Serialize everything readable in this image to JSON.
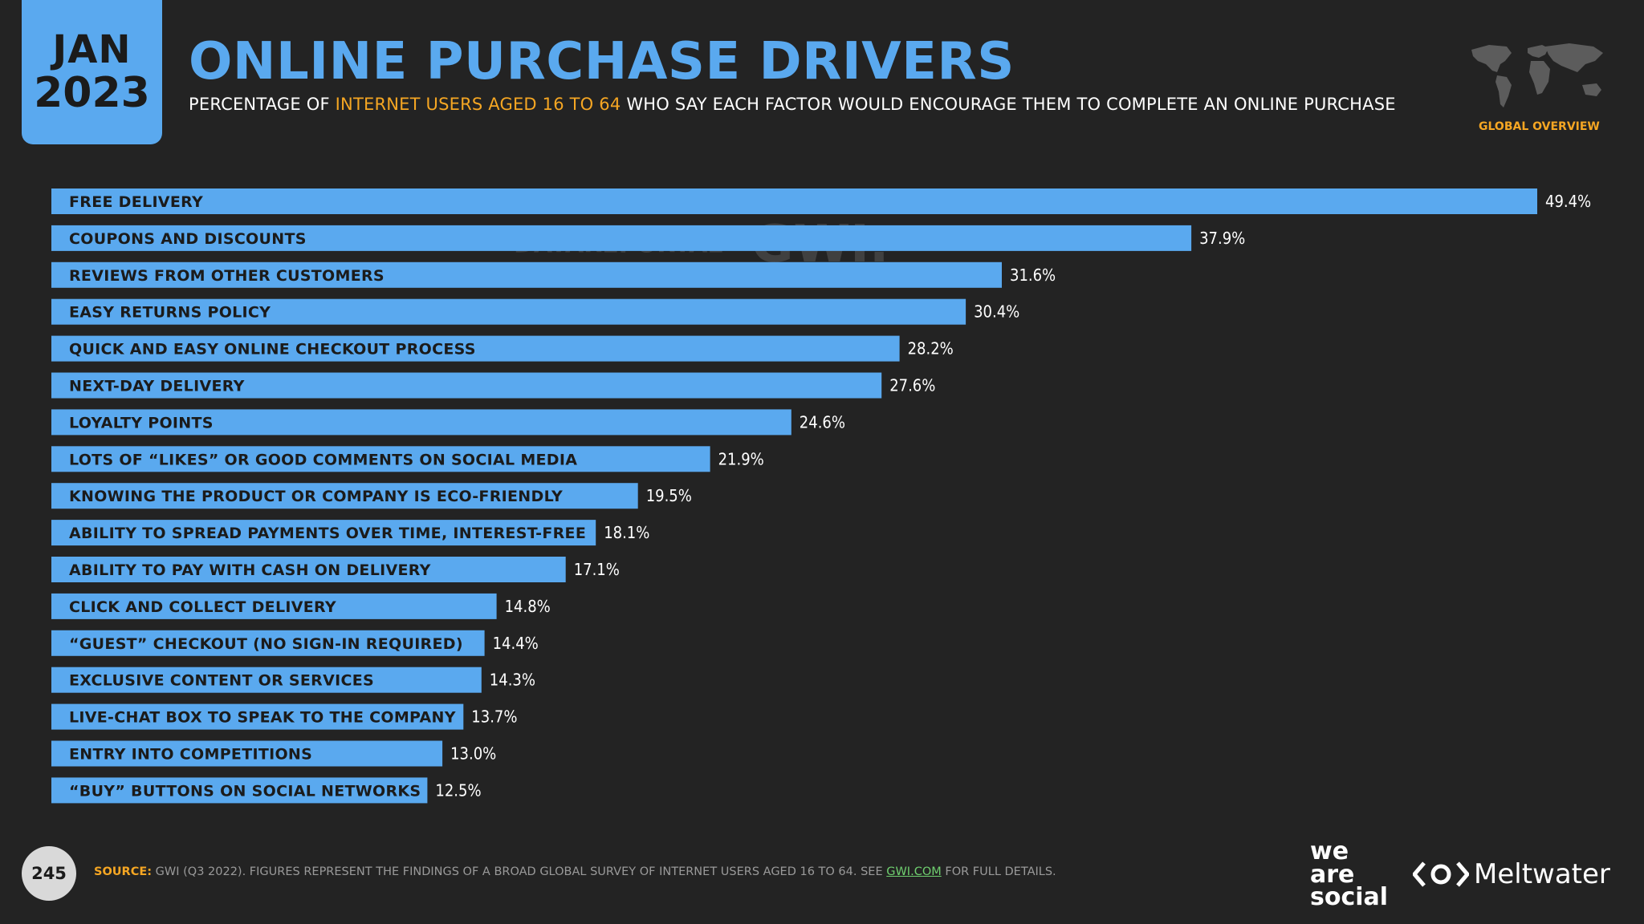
{
  "header": {
    "month": "JAN",
    "year": "2023",
    "title": "ONLINE PURCHASE DRIVERS",
    "subtitle_pre": "PERCENTAGE OF",
    "subtitle_highlight": "INTERNET USERS AGED 16 TO 64",
    "subtitle_post": "WHO SAY EACH FACTOR WOULD ENCOURAGE THEM TO COMPLETE AN ONLINE PURCHASE",
    "region_label": "GLOBAL OVERVIEW"
  },
  "watermark": {
    "datareportal": "DATAREPORTAL",
    "gwi": "GWI."
  },
  "chart_data": {
    "type": "bar",
    "orientation": "horizontal",
    "categories": [
      "FREE DELIVERY",
      "COUPONS AND DISCOUNTS",
      "REVIEWS FROM OTHER CUSTOMERS",
      "EASY RETURNS POLICY",
      "QUICK AND EASY ONLINE CHECKOUT PROCESS",
      "NEXT-DAY DELIVERY",
      "LOYALTY POINTS",
      "LOTS OF “LIKES” OR GOOD COMMENTS ON SOCIAL MEDIA",
      "KNOWING THE PRODUCT OR COMPANY IS ECO-FRIENDLY",
      "ABILITY TO SPREAD PAYMENTS OVER TIME, INTEREST-FREE",
      "ABILITY TO PAY WITH CASH ON DELIVERY",
      "CLICK AND COLLECT DELIVERY",
      "“GUEST” CHECKOUT (NO SIGN-IN REQUIRED)",
      "EXCLUSIVE CONTENT OR SERVICES",
      "LIVE-CHAT BOX TO SPEAK TO THE COMPANY",
      "ENTRY INTO COMPETITIONS",
      "“BUY” BUTTONS ON SOCIAL NETWORKS"
    ],
    "values": [
      49.4,
      37.9,
      31.6,
      30.4,
      28.2,
      27.6,
      24.6,
      21.9,
      19.5,
      18.1,
      17.1,
      14.8,
      14.4,
      14.3,
      13.7,
      13.0,
      12.5
    ],
    "value_labels": [
      "49.4%",
      "37.9%",
      "31.6%",
      "30.4%",
      "28.2%",
      "27.6%",
      "24.6%",
      "21.9%",
      "19.5%",
      "18.1%",
      "17.1%",
      "14.8%",
      "14.4%",
      "14.3%",
      "13.7%",
      "13.0%",
      "12.5%"
    ],
    "xlim": [
      0,
      49.4
    ],
    "bar_color": "#5aa9ef",
    "grid": false
  },
  "footer": {
    "page_number": "245",
    "source_label": "SOURCE:",
    "source_text": "GWI (Q3 2022). FIGURES REPRESENT THE FINDINGS OF A BROAD GLOBAL SURVEY OF INTERNET USERS AGED 16 TO 64. SEE",
    "source_link": "GWI.COM",
    "source_tail": "FOR FULL DETAILS.",
    "logo1_line1": "we",
    "logo1_line2": "are",
    "logo1_line3": "social",
    "logo2": "Meltwater"
  },
  "colors": {
    "background": "#232323",
    "accent_blue": "#5aa9ef",
    "highlight_orange": "#f5a623"
  },
  "icons": {
    "map": "world-map-icon",
    "meltwater": "meltwater-logo-icon"
  }
}
